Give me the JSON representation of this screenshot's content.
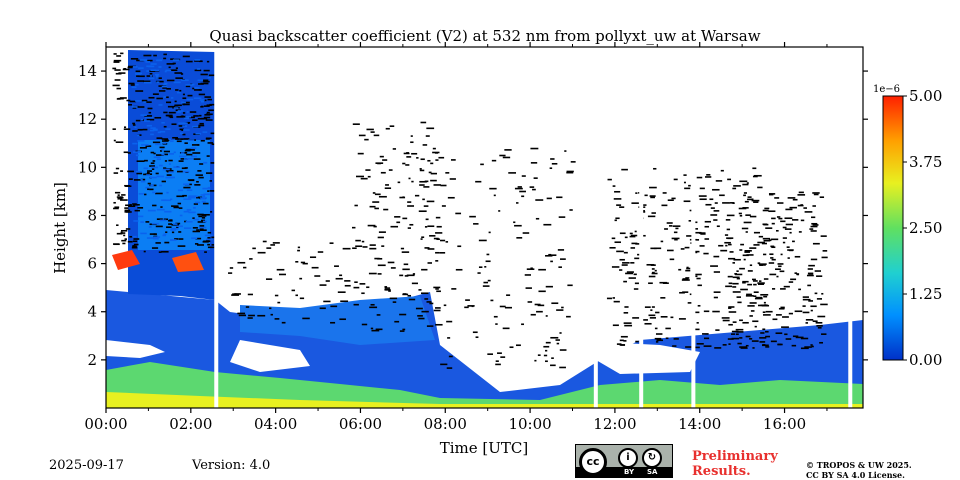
{
  "chart_data": {
    "type": "heatmap",
    "title": "Quasi backscatter coefficient (V2) at 532 nm from pollyxt_uw at Warsaw",
    "xlabel": "Time [UTC]",
    "ylabel": "Height [km]",
    "xlim": [
      0,
      17.85
    ],
    "ylim": [
      0,
      15
    ],
    "x_ticks": [
      {
        "value": 0,
        "label": "00:00"
      },
      {
        "value": 2,
        "label": "02:00"
      },
      {
        "value": 4,
        "label": "04:00"
      },
      {
        "value": 6,
        "label": "06:00"
      },
      {
        "value": 8,
        "label": "08:00"
      },
      {
        "value": 10,
        "label": "10:00"
      },
      {
        "value": 12,
        "label": "12:00"
      },
      {
        "value": 14,
        "label": "14:00"
      },
      {
        "value": 16,
        "label": "16:00"
      }
    ],
    "y_ticks": [
      {
        "value": 2,
        "label": "2"
      },
      {
        "value": 4,
        "label": "4"
      },
      {
        "value": 6,
        "label": "6"
      },
      {
        "value": 8,
        "label": "8"
      },
      {
        "value": 10,
        "label": "10"
      },
      {
        "value": 12,
        "label": "12"
      },
      {
        "value": 14,
        "label": "14"
      }
    ],
    "colorbar": {
      "min": 0.0,
      "max": 5.0,
      "scale_label": "1e−6",
      "ticks": [
        {
          "value": 0.0,
          "label": "0.00"
        },
        {
          "value": 1.25,
          "label": "1.25"
        },
        {
          "value": 2.5,
          "label": "2.50"
        },
        {
          "value": 3.75,
          "label": "3.75"
        },
        {
          "value": 5.0,
          "label": "5.00"
        }
      ],
      "colors": [
        "#0030c8",
        "#0090ff",
        "#20d0d0",
        "#60e060",
        "#e8f020",
        "#ffa000",
        "#ff2000"
      ]
    },
    "data_gaps_hours": [
      2.6,
      11.55,
      12.62,
      13.85,
      17.55
    ]
  },
  "footer": {
    "date": "2025-09-17",
    "version": "Version: 4.0",
    "preliminary_line1": "Preliminary",
    "preliminary_line2": "Results.",
    "copyright_line1": "© TROPOS & UW 2025.",
    "copyright_line2": "CC BY SA 4.0 License.",
    "license_main": "cc",
    "license_by": "BY",
    "license_sa": "SA",
    "license_by_icon": "i",
    "license_sa_icon": "↻"
  }
}
